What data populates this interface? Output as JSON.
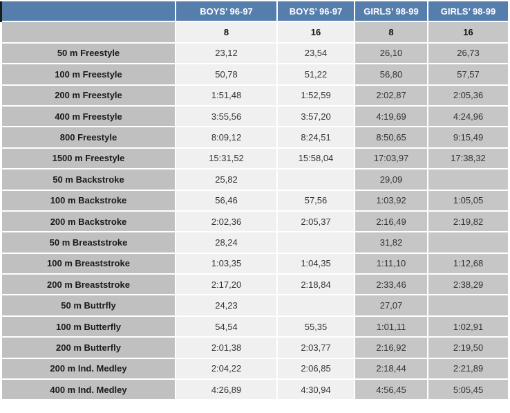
{
  "colors": {
    "page_bg": "#ffffff",
    "header_bg": "#567eac",
    "header_text": "#ffffff",
    "label_col_bg": "#c0c0c0",
    "boys_col_bg": "#f0f0f0",
    "girls_col_bg": "#c6c6c6",
    "label_text": "#1a1a1a",
    "value_text": "#333333"
  },
  "table": {
    "group_headers": [
      "BOYS’ 96-97",
      "BOYS’ 96-97",
      "GIRLS’ 98-99",
      "GIRLS’ 98-99"
    ],
    "age_headers": [
      "8",
      "16",
      "8",
      "16"
    ],
    "rows": [
      {
        "event": "50 m Freestyle",
        "values": [
          "23,12",
          "23,54",
          "26,10",
          "26,73"
        ]
      },
      {
        "event": "100 m Freestyle",
        "values": [
          "50,78",
          "51,22",
          "56,80",
          "57,57"
        ]
      },
      {
        "event": "200 m Freestyle",
        "values": [
          "1:51,48",
          "1:52,59",
          "2:02,87",
          "2:05,36"
        ]
      },
      {
        "event": "400 m Freestyle",
        "values": [
          "3:55,56",
          "3:57,20",
          "4:19,69",
          "4:24,96"
        ]
      },
      {
        "event": "800 Freestyle",
        "values": [
          "8:09,12",
          "8:24,51",
          "8:50,65",
          "9:15,49"
        ]
      },
      {
        "event": "1500 m Freestyle",
        "values": [
          "15:31,52",
          "15:58,04",
          "17:03,97",
          "17:38,32"
        ]
      },
      {
        "event": "50 m Backstroke",
        "values": [
          "25,82",
          "",
          "29,09",
          ""
        ]
      },
      {
        "event": "100 m Backstroke",
        "values": [
          "56,46",
          "57,56",
          "1:03,92",
          "1:05,05"
        ]
      },
      {
        "event": "200 m Backstroke",
        "values": [
          "2:02,36",
          "2:05,37",
          "2:16,49",
          "2:19,82"
        ]
      },
      {
        "event": "50 m Breaststroke",
        "values": [
          "28,24",
          "",
          "31,82",
          ""
        ]
      },
      {
        "event": "100 m Breaststroke",
        "values": [
          "1:03,35",
          "1:04,35",
          "1:11,10",
          "1:12,68"
        ]
      },
      {
        "event": "200 m Breaststroke",
        "values": [
          "2:17,20",
          "2:18,84",
          "2:33,46",
          "2:38,29"
        ]
      },
      {
        "event": "50 m Buttrfly",
        "values": [
          "24,23",
          "",
          "27,07",
          ""
        ]
      },
      {
        "event": "100 m Butterfly",
        "values": [
          "54,54",
          "55,35",
          "1:01,11",
          "1:02,91"
        ]
      },
      {
        "event": "200 m Butterfly",
        "values": [
          "2:01,38",
          "2:03,77",
          "2:16,92",
          "2:19,50"
        ]
      },
      {
        "event": "200 m Ind. Medley",
        "values": [
          "2:04,22",
          "2:06,85",
          "2:18,44",
          "2:21,89"
        ]
      },
      {
        "event": "400 m Ind. Medley",
        "values": [
          "4:26,89",
          "4:30,94",
          "4:56,45",
          "5:05,45"
        ]
      }
    ]
  }
}
